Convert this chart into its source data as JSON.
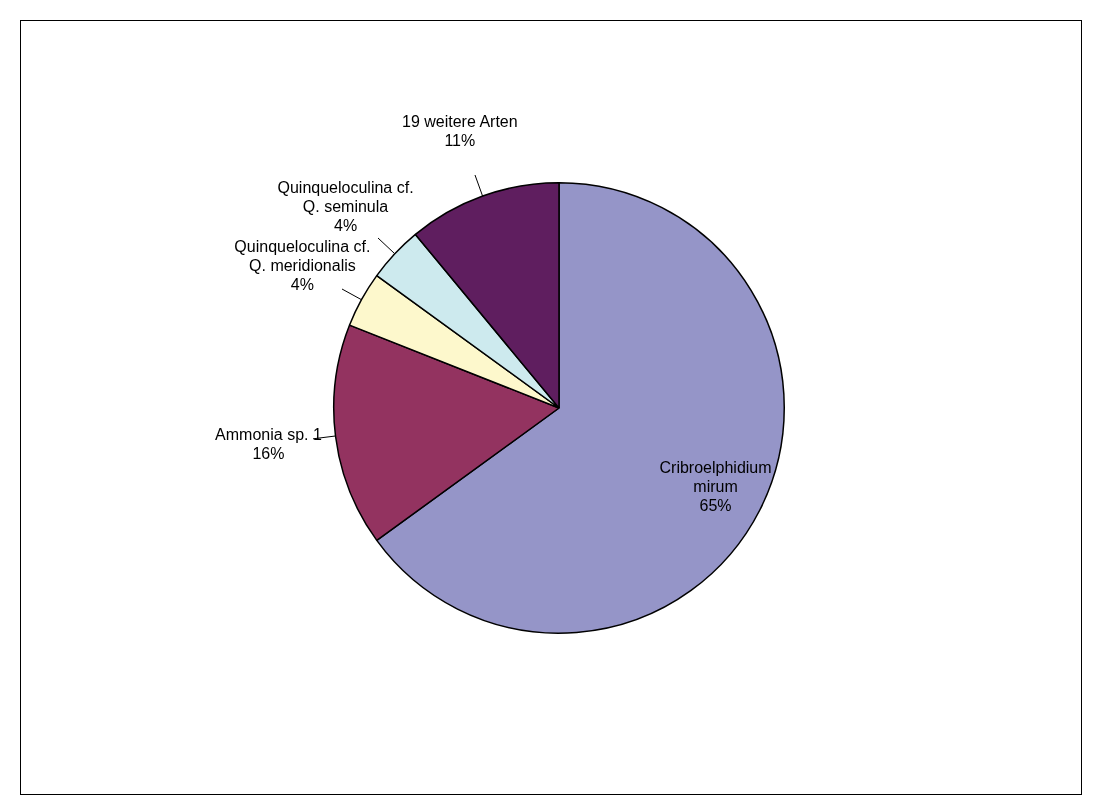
{
  "chart_data": {
    "type": "pie",
    "categories": [
      "Cribroelphidium mirum",
      "Ammonia sp. 1",
      "Quinqueloculina cf. Q. meridionalis",
      "Quinqueloculina cf. Q. seminula",
      "19 weitere Arten"
    ],
    "values": [
      65,
      16,
      4,
      4,
      11
    ],
    "value_labels": [
      "65%",
      "16%",
      "4%",
      "4%",
      "11%"
    ],
    "colors": [
      "#9595c8",
      "#933360",
      "#fdf8cc",
      "#cdeaee",
      "#5f1e5f"
    ],
    "legend": false
  }
}
